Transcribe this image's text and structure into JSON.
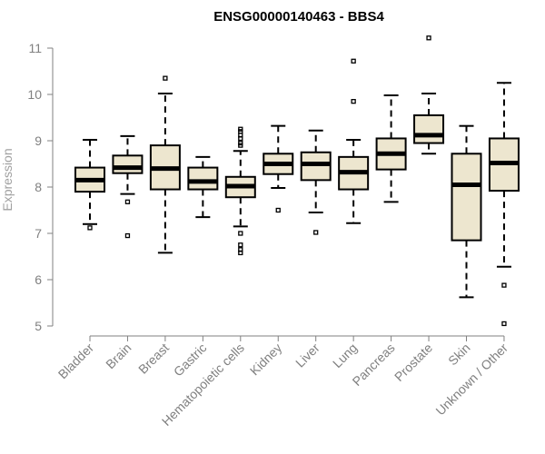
{
  "chart_data": {
    "type": "boxplot",
    "title": "ENSG00000140463 - BBS4",
    "ylabel": "Expression",
    "xlabel": "",
    "ylim": [
      5,
      11
    ],
    "yticks": [
      5,
      6,
      7,
      8,
      9,
      10,
      11
    ],
    "grid": false,
    "box_fill": "#ede6cf",
    "categories": [
      "Bladder",
      "Brain",
      "Breast",
      "Gastric",
      "Hematopoietic cells",
      "Kidney",
      "Liver",
      "Lung",
      "Pancreas",
      "Prostate",
      "Skin",
      "Unknown / Other"
    ],
    "boxes": [
      {
        "whisker_low": 7.2,
        "q1": 7.9,
        "median": 8.15,
        "q3": 8.42,
        "whisker_high": 9.02,
        "outliers": [
          7.12
        ]
      },
      {
        "whisker_low": 7.85,
        "q1": 8.3,
        "median": 8.42,
        "q3": 8.68,
        "whisker_high": 9.1,
        "outliers": [
          7.68,
          6.95
        ]
      },
      {
        "whisker_low": 6.58,
        "q1": 7.95,
        "median": 8.4,
        "q3": 8.9,
        "whisker_high": 10.02,
        "outliers": [
          10.35
        ]
      },
      {
        "whisker_low": 7.35,
        "q1": 7.95,
        "median": 8.12,
        "q3": 8.42,
        "whisker_high": 8.65,
        "outliers": []
      },
      {
        "whisker_low": 7.15,
        "q1": 7.78,
        "median": 8.02,
        "q3": 8.22,
        "whisker_high": 8.78,
        "outliers": [
          6.58,
          6.65,
          6.75,
          7.0,
          8.9,
          8.95,
          9.05,
          9.12,
          9.2,
          9.25
        ]
      },
      {
        "whisker_low": 7.98,
        "q1": 8.28,
        "median": 8.5,
        "q3": 8.72,
        "whisker_high": 9.32,
        "outliers": [
          7.5
        ]
      },
      {
        "whisker_low": 7.45,
        "q1": 8.15,
        "median": 8.5,
        "q3": 8.75,
        "whisker_high": 9.22,
        "outliers": [
          7.02
        ]
      },
      {
        "whisker_low": 7.22,
        "q1": 7.95,
        "median": 8.32,
        "q3": 8.65,
        "whisker_high": 9.02,
        "outliers": [
          9.85,
          10.72
        ]
      },
      {
        "whisker_low": 7.68,
        "q1": 8.38,
        "median": 8.72,
        "q3": 9.05,
        "whisker_high": 9.98,
        "outliers": []
      },
      {
        "whisker_low": 8.72,
        "q1": 8.95,
        "median": 9.12,
        "q3": 9.55,
        "whisker_high": 10.02,
        "outliers": [
          11.22
        ]
      },
      {
        "whisker_low": 5.62,
        "q1": 6.85,
        "median": 8.05,
        "q3": 8.72,
        "whisker_high": 9.32,
        "outliers": []
      },
      {
        "whisker_low": 6.28,
        "q1": 7.92,
        "median": 8.52,
        "q3": 9.05,
        "whisker_high": 10.25,
        "outliers": [
          5.88,
          5.05
        ]
      }
    ]
  }
}
